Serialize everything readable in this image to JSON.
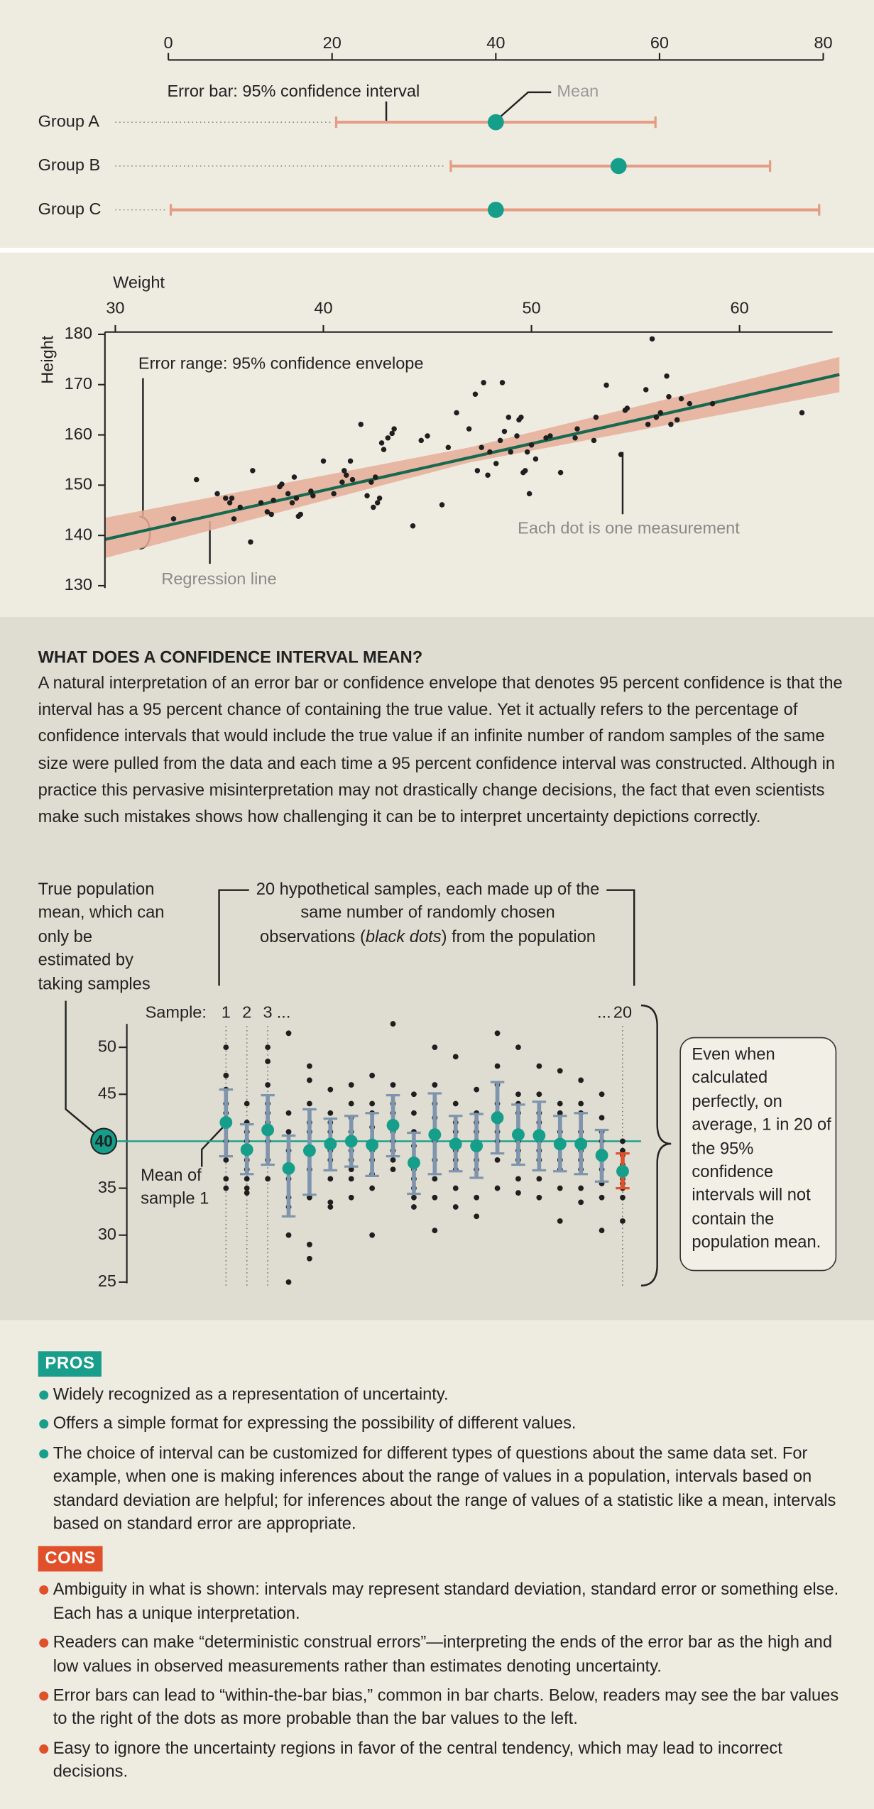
{
  "chart_data": [
    {
      "type": "errorbar",
      "xlim": [
        0,
        80
      ],
      "xticks": [
        0,
        20,
        40,
        60,
        80
      ],
      "groups": [
        {
          "name": "Group A",
          "mean": 40,
          "lower": 20.5,
          "upper": 59.5
        },
        {
          "name": "Group B",
          "mean": 55,
          "lower": 34.5,
          "upper": 73.5
        },
        {
          "name": "Group C",
          "mean": 40,
          "lower": 0.3,
          "upper": 79.5
        }
      ],
      "mean_color": "#159e8a",
      "bar_color": "#e59c84",
      "annotations": {
        "error_bar": "Error bar: 95% confidence interval",
        "mean": "Mean"
      }
    },
    {
      "type": "scatter",
      "x_label": "Weight",
      "y_label": "Height",
      "xlim": [
        29.5,
        64.8
      ],
      "xticks": [
        30,
        40,
        50,
        60
      ],
      "ylim": [
        130,
        180
      ],
      "yticks": [
        130,
        140,
        150,
        160,
        170,
        180
      ],
      "points": {
        "x": [
          32.8,
          33.9,
          34.9,
          35.3,
          35.5,
          35.6,
          35.7,
          36.0,
          36.5,
          36.6,
          37.0,
          37.3,
          37.5,
          37.6,
          37.9,
          38.0,
          38.3,
          38.5,
          38.6,
          38.7,
          38.8,
          38.9,
          39.4,
          39.5,
          40.0,
          40.5,
          40.9,
          41.0,
          41.1,
          41.3,
          41.4,
          41.8,
          42.1,
          42.3,
          42.4,
          42.5,
          42.6,
          42.7,
          42.8,
          42.9,
          43.1,
          43.3,
          43.4,
          44.3,
          44.7,
          45.0,
          45.7,
          46.0,
          46.4,
          47.0,
          47.3,
          47.4,
          47.6,
          47.7,
          47.9,
          48.0,
          48.3,
          48.5,
          48.6,
          48.7,
          48.9,
          49.0,
          49.3,
          49.4,
          49.5,
          49.6,
          49.7,
          49.8,
          49.9,
          50.0,
          50.2,
          50.7,
          50.9,
          51.4,
          52.1,
          52.2,
          53.0,
          53.1,
          53.6,
          54.3,
          54.5,
          54.6,
          55.5,
          55.6,
          55.8,
          56.0,
          56.2,
          56.5,
          56.6,
          56.7,
          57.0,
          57.2,
          57.6,
          58.7,
          63.0
        ],
        "y": [
          143.3,
          151.1,
          148.3,
          147.4,
          146.5,
          147.4,
          143.3,
          145.6,
          138.7,
          152.9,
          146.5,
          144.7,
          144.2,
          147.0,
          149.7,
          150.2,
          148.3,
          146.5,
          151.6,
          147.4,
          143.8,
          144.2,
          148.8,
          147.9,
          154.8,
          148.3,
          150.6,
          152.9,
          152.0,
          154.8,
          151.1,
          162.1,
          147.9,
          150.6,
          145.6,
          151.6,
          146.5,
          147.4,
          158.4,
          157.1,
          159.4,
          160.3,
          161.2,
          141.9,
          158.9,
          159.8,
          146.1,
          157.5,
          164.4,
          161.2,
          168.1,
          152.9,
          157.5,
          170.4,
          152.0,
          156.6,
          154.3,
          158.9,
          170.4,
          160.7,
          163.5,
          156.6,
          159.8,
          163.0,
          163.5,
          152.5,
          152.9,
          156.6,
          148.3,
          158.0,
          155.2,
          159.4,
          159.8,
          152.5,
          159.4,
          161.2,
          158.9,
          163.5,
          169.9,
          156.1,
          164.9,
          165.3,
          169.0,
          162.1,
          179.1,
          163.5,
          164.4,
          171.7,
          167.6,
          162.1,
          163.0,
          167.2,
          166.2,
          166.2,
          164.4
        ]
      },
      "point_color": "#1f1f1f",
      "regression": {
        "x": [
          29.5,
          64.8
        ],
        "y": [
          139.2,
          172.0
        ],
        "color": "#17694f"
      },
      "envelope": {
        "x": [
          29.5,
          47,
          64.8
        ],
        "lower": [
          135.5,
          154.5,
          168.5
        ],
        "upper": [
          143.5,
          157.5,
          175.5
        ],
        "color": "#e6ae98"
      },
      "annotations": {
        "envelope": "Error range: 95% confidence envelope",
        "regression": "Regression line",
        "dot": "Each dot is one measurement"
      }
    },
    {
      "type": "sample_intervals",
      "ylim": [
        25,
        52.5
      ],
      "yticks": [
        25,
        30,
        35,
        40,
        45,
        50
      ],
      "population_mean": 40,
      "mean_color": "#159e8a",
      "line_color": "#159e8a",
      "dot_color": "#1f1f1f",
      "sample_title": "Sample:",
      "ellipses": [
        "...",
        "..."
      ],
      "samples": [
        {
          "label": "1",
          "mean": 42.0,
          "lower": 38.4,
          "upper": 45.5,
          "color": "#7f95ad",
          "observations": [
            50,
            47,
            45.5,
            44,
            43,
            41.5,
            40,
            38,
            36,
            35
          ]
        },
        {
          "label": "2",
          "mean": 39.1,
          "lower": 36.5,
          "upper": 41.8,
          "color": "#7f95ad",
          "observations": [
            44,
            42,
            41,
            40,
            39.5,
            38,
            37,
            36,
            35,
            34.5
          ]
        },
        {
          "label": "3",
          "mean": 41.2,
          "lower": 37.5,
          "upper": 44.9,
          "color": "#7f95ad",
          "observations": [
            50,
            48.5,
            46,
            44,
            43,
            42,
            41,
            40,
            38,
            36
          ]
        },
        {
          "label": null,
          "mean": 37.1,
          "lower": 32.0,
          "upper": 40.6,
          "color": "#7f95ad",
          "observations": [
            51.5,
            43,
            41,
            39,
            37,
            36,
            34,
            33,
            30,
            25
          ]
        },
        {
          "label": null,
          "mean": 39.0,
          "lower": 34.3,
          "upper": 43.4,
          "color": "#7f95ad",
          "observations": [
            48,
            46.5,
            44,
            42,
            41,
            39,
            37,
            34,
            29,
            27.5
          ]
        },
        {
          "label": null,
          "mean": 39.7,
          "lower": 36.9,
          "upper": 42.4,
          "color": "#7f95ad",
          "observations": [
            45.5,
            43,
            42,
            41,
            40,
            39,
            38,
            36,
            33.5,
            33
          ]
        },
        {
          "label": null,
          "mean": 40.0,
          "lower": 37.3,
          "upper": 42.7,
          "color": "#7f95ad",
          "observations": [
            46,
            44,
            42.5,
            41,
            40,
            39,
            38,
            37,
            36,
            34
          ]
        },
        {
          "label": null,
          "mean": 39.6,
          "lower": 36.3,
          "upper": 43.0,
          "color": "#7f95ad",
          "observations": [
            47,
            44,
            43,
            41.5,
            40,
            39,
            38,
            36.5,
            35,
            30
          ]
        },
        {
          "label": null,
          "mean": 41.7,
          "lower": 38.4,
          "upper": 44.9,
          "color": "#7f95ad",
          "observations": [
            52.5,
            46,
            44,
            43,
            42,
            41,
            40,
            39,
            38,
            37
          ]
        },
        {
          "label": null,
          "mean": 37.7,
          "lower": 34.4,
          "upper": 40.9,
          "color": "#7f95ad",
          "observations": [
            45,
            43,
            41,
            39.5,
            38,
            37,
            36,
            35,
            34,
            33
          ]
        },
        {
          "label": null,
          "mean": 40.7,
          "lower": 36.5,
          "upper": 45.1,
          "color": "#7f95ad",
          "observations": [
            50,
            46,
            44,
            42.5,
            41,
            40,
            38,
            36,
            34,
            30.5
          ]
        },
        {
          "label": null,
          "mean": 39.7,
          "lower": 36.8,
          "upper": 42.7,
          "color": "#7f95ad",
          "observations": [
            49,
            44,
            42,
            41,
            40,
            39,
            38,
            37,
            35,
            33
          ]
        },
        {
          "label": null,
          "mean": 39.5,
          "lower": 36.1,
          "upper": 42.9,
          "color": "#7f95ad",
          "observations": [
            45.5,
            43,
            42,
            41,
            40,
            39,
            38,
            37,
            34,
            32
          ]
        },
        {
          "label": null,
          "mean": 42.5,
          "lower": 38.7,
          "upper": 46.3,
          "color": "#7f95ad",
          "observations": [
            51.5,
            48,
            46,
            44,
            43,
            42,
            41,
            40,
            38,
            35
          ]
        },
        {
          "label": null,
          "mean": 40.7,
          "lower": 37.5,
          "upper": 43.9,
          "color": "#7f95ad",
          "observations": [
            50,
            45,
            44,
            43,
            41,
            40,
            39,
            38,
            36,
            34.5
          ]
        },
        {
          "label": null,
          "mean": 40.6,
          "lower": 36.9,
          "upper": 44.2,
          "color": "#7f95ad",
          "observations": [
            48,
            45,
            43,
            42,
            41,
            40,
            39,
            38,
            36,
            34
          ]
        },
        {
          "label": null,
          "mean": 39.7,
          "lower": 36.8,
          "upper": 42.7,
          "color": "#7f95ad",
          "observations": [
            47.5,
            44,
            43,
            41,
            40,
            39.5,
            38,
            37,
            35,
            31.5
          ]
        },
        {
          "label": null,
          "mean": 39.7,
          "lower": 36.5,
          "upper": 43.0,
          "color": "#7f95ad",
          "observations": [
            46.5,
            44,
            43,
            41,
            40,
            39,
            38,
            37,
            35,
            33.5
          ]
        },
        {
          "label": null,
          "mean": 38.5,
          "lower": 35.7,
          "upper": 41.2,
          "color": "#7f95ad",
          "observations": [
            45,
            42.5,
            41,
            40,
            39,
            38,
            37,
            35.5,
            34,
            30.5
          ]
        },
        {
          "label": "20",
          "mean": 36.8,
          "lower": 35.0,
          "upper": 38.7,
          "color": "#e0502a",
          "observations": [
            40,
            39,
            38.5,
            37.5,
            37,
            36,
            35.5,
            35,
            34,
            31.5
          ]
        }
      ],
      "annotations": {
        "population": "True population mean, which can only be estimated by taking samples",
        "samples": [
          "20 hypothetical samples, each made up of the same number of randomly chosen observations (",
          "black dots",
          ") from the population"
        ],
        "sample_mean": "Mean of sample 1",
        "box": "Even when calculated perfectly, on average, 1 in 20 of the 95% confidence intervals will not contain the population mean."
      }
    }
  ],
  "article": {
    "heading": "WHAT DOES A CONFIDENCE INTERVAL MEAN?",
    "paragraph": "A natural interpretation of an error bar or confidence envelope that denotes 95 percent confidence is that the interval has a 95 percent chance of containing the true value. Yet it actually refers to the percentage of confidence intervals that would include the true value if an infinite number of random samples of the same size were pulled from the data and each time a 95 percent confidence interval was constructed. Although in practice this pervasive misinterpretation may not drastically change decisions, the fact that even scientists make such mistakes shows how challenging it can be to interpret uncertainty depictions correctly.",
    "pros_label": "PROS",
    "pros_color": "#1a9e8c",
    "pros": [
      "Widely recognized as a representation of uncertainty.",
      "Offers a simple format for expressing the possibility of different values.",
      "The choice of interval can be customized for different types of questions about the same data set. For example, when one is making inferences about the range of values in a population, intervals based on standard deviation are helpful; for inferences about the range of values of a statistic like a mean, intervals based on standard error are appropriate."
    ],
    "cons_label": "CONS",
    "cons_color": "#e0502a",
    "cons": [
      "Ambiguity in what is shown: intervals may represent standard deviation, standard error or something else. Each has a unique interpretation.",
      "Readers can make “deterministic construal errors”—interpreting the ends of the error bar as the high and low values in observed measurements rather than estimates denoting uncertainty.",
      "Error bars can lead to “within-the-bar bias,” common in bar charts. Below, readers may see the bar values to the right of the dots as more probable than the bar values to the left.",
      "Easy to ignore the uncertainty regions in favor of the central tendency, which may lead to incorrect decisions."
    ]
  }
}
